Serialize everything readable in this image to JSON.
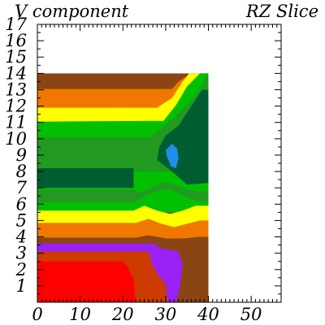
{
  "titles": {
    "left": "V component",
    "right": "RZ Slice"
  },
  "chart_data": {
    "type": "heatmap",
    "title": "V component",
    "subtitle": "RZ Slice",
    "xlabel": "",
    "ylabel": "",
    "xlim": [
      0,
      57
    ],
    "ylim": [
      0,
      17
    ],
    "x_ticks": [
      0,
      10,
      20,
      30,
      40,
      50
    ],
    "y_ticks": [
      1,
      2,
      3,
      4,
      5,
      6,
      7,
      8,
      9,
      10,
      11,
      12,
      13,
      14,
      15,
      16,
      17
    ],
    "grid": false,
    "colors": {
      "red": "#ff0000",
      "dark_orange": "#cc3b00",
      "purple": "#9a21f4",
      "brown": "#8b4513",
      "orange": "#f07800",
      "yellow": "#ffff00",
      "light_green": "#00c000",
      "mid_green": "#229a22",
      "dark_green": "#005d32",
      "blue": "#1f8ee8"
    },
    "regions": [
      {
        "color": "brown",
        "points": [
          [
            0,
            0
          ],
          [
            40,
            0
          ],
          [
            40,
            14
          ],
          [
            0,
            14
          ]
        ]
      },
      {
        "color": "orange",
        "points": [
          [
            0,
            13.05
          ],
          [
            31.5,
            13.05
          ],
          [
            33,
            13.5
          ],
          [
            36,
            14
          ],
          [
            40,
            14
          ],
          [
            40,
            10
          ],
          [
            0,
            10
          ]
        ]
      },
      {
        "color": "yellow",
        "points": [
          [
            0,
            11.9
          ],
          [
            28,
            11.9
          ],
          [
            31.5,
            12.5
          ],
          [
            34,
            13.5
          ],
          [
            35.5,
            14
          ],
          [
            40,
            14
          ],
          [
            40,
            10
          ],
          [
            0,
            10
          ]
        ]
      },
      {
        "color": "light_green",
        "points": [
          [
            0,
            11.05
          ],
          [
            29.5,
            11.1
          ],
          [
            32.5,
            12.1
          ],
          [
            35,
            13.2
          ],
          [
            38,
            14
          ],
          [
            40,
            14
          ],
          [
            40,
            5.5
          ],
          [
            0,
            5.5
          ]
        ]
      },
      {
        "color": "mid_green",
        "points": [
          [
            0,
            10.1
          ],
          [
            26.5,
            10.1
          ],
          [
            31.5,
            11.2
          ],
          [
            35.5,
            12.2
          ],
          [
            38.5,
            13.2
          ],
          [
            39.5,
            13.9
          ],
          [
            40,
            13.9
          ],
          [
            40,
            8
          ],
          [
            0,
            8
          ]
        ]
      },
      {
        "color": "dark_green",
        "points": [
          [
            38.5,
            13
          ],
          [
            40,
            13
          ],
          [
            40,
            7.3
          ],
          [
            35,
            7.2
          ],
          [
            31,
            8.1
          ],
          [
            28,
            8.7
          ],
          [
            28.5,
            9.5
          ],
          [
            30,
            10.2
          ],
          [
            33,
            10.8
          ],
          [
            35.5,
            11.8
          ]
        ]
      },
      {
        "color": "dark_green",
        "points": [
          [
            0,
            8.2
          ],
          [
            22.5,
            8.2
          ],
          [
            22.5,
            7.0
          ],
          [
            0,
            7.0
          ]
        ]
      },
      {
        "color": "blue",
        "points": [
          [
            30,
            9.3
          ],
          [
            31.5,
            9.7
          ],
          [
            32.7,
            9.4
          ],
          [
            33,
            8.8
          ],
          [
            32.4,
            8.2
          ],
          [
            31.3,
            8.3
          ],
          [
            30.3,
            8.9
          ]
        ]
      },
      {
        "color": "light_green",
        "points": [
          [
            0,
            6.1
          ],
          [
            22.5,
            6.1
          ],
          [
            24,
            6.3
          ],
          [
            26,
            6.6
          ],
          [
            29,
            6.9
          ],
          [
            31,
            6.9
          ],
          [
            33.5,
            6.6
          ],
          [
            36,
            6.3
          ],
          [
            40,
            6.1
          ],
          [
            40,
            5.5
          ],
          [
            0,
            5.5
          ]
        ]
      },
      {
        "color": "mid_green",
        "points": [
          [
            0,
            6.9
          ],
          [
            22.5,
            6.9
          ],
          [
            24,
            6.7
          ],
          [
            26.5,
            7.0
          ],
          [
            29,
            7.3
          ],
          [
            31,
            7.3
          ],
          [
            34,
            7.0
          ],
          [
            37,
            6.8
          ],
          [
            40,
            6.8
          ],
          [
            40,
            6.1
          ],
          [
            36,
            6.3
          ],
          [
            33.5,
            6.6
          ],
          [
            31,
            6.9
          ],
          [
            29,
            6.9
          ],
          [
            26,
            6.6
          ],
          [
            24,
            6.3
          ],
          [
            22.5,
            6.1
          ],
          [
            0,
            6.1
          ]
        ]
      },
      {
        "color": "yellow",
        "points": [
          [
            0,
            5.6
          ],
          [
            22.5,
            5.6
          ],
          [
            25,
            5.9
          ],
          [
            28,
            5.6
          ],
          [
            31,
            5.4
          ],
          [
            34,
            5.6
          ],
          [
            37,
            5.9
          ],
          [
            40,
            5.9
          ],
          [
            40,
            4.5
          ],
          [
            0,
            4.5
          ]
        ]
      },
      {
        "color": "orange",
        "points": [
          [
            0,
            4.85
          ],
          [
            23,
            4.85
          ],
          [
            26,
            5.1
          ],
          [
            29,
            4.8
          ],
          [
            32,
            4.6
          ],
          [
            35,
            4.8
          ],
          [
            38,
            5.0
          ],
          [
            40,
            5.0
          ],
          [
            40,
            3.6
          ],
          [
            0,
            3.6
          ]
        ]
      },
      {
        "color": "brown",
        "points": [
          [
            0,
            3.95
          ],
          [
            23,
            3.95
          ],
          [
            26,
            4.1
          ],
          [
            30,
            3.9
          ],
          [
            34,
            3.9
          ],
          [
            38,
            4.0
          ],
          [
            40,
            4.0
          ],
          [
            40,
            0
          ],
          [
            0,
            0
          ]
        ]
      },
      {
        "color": "purple",
        "points": [
          [
            0,
            3.6
          ],
          [
            27,
            3.6
          ],
          [
            29,
            3.3
          ],
          [
            31.5,
            3.2
          ],
          [
            33,
            3.1
          ],
          [
            34,
            2.4
          ],
          [
            33.5,
            1.2
          ],
          [
            32.5,
            0
          ],
          [
            0,
            0
          ]
        ]
      },
      {
        "color": "dark_orange",
        "points": [
          [
            0,
            3.1
          ],
          [
            26,
            3.1
          ],
          [
            27,
            2.2
          ],
          [
            28.5,
            1.6
          ],
          [
            30,
            1.1
          ],
          [
            30.5,
            0
          ],
          [
            0,
            0
          ]
        ]
      },
      {
        "color": "brown",
        "points": [
          [
            33.5,
            0
          ],
          [
            34.5,
            1.2
          ],
          [
            35.5,
            2.0
          ],
          [
            36.5,
            3.0
          ],
          [
            38,
            3.3
          ],
          [
            40,
            3.3
          ],
          [
            40,
            0
          ]
        ]
      },
      {
        "color": "red",
        "points": [
          [
            0,
            2.5
          ],
          [
            20,
            2.5
          ],
          [
            21,
            2.2
          ],
          [
            22.5,
            1.4
          ],
          [
            23,
            0
          ],
          [
            0,
            0
          ]
        ]
      }
    ]
  }
}
